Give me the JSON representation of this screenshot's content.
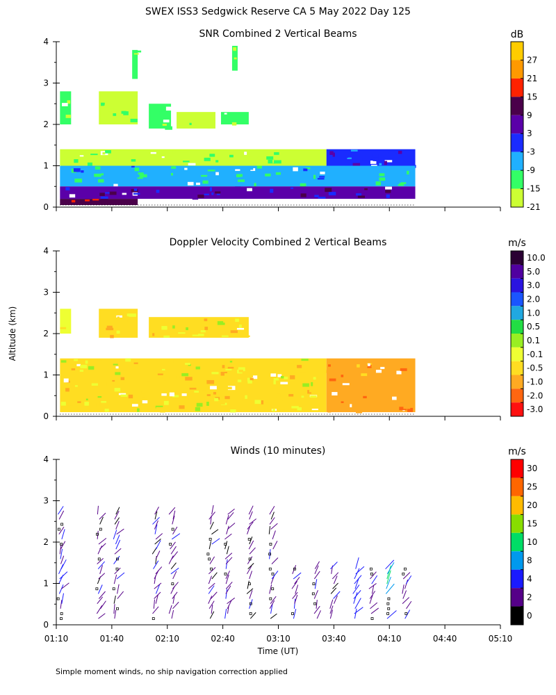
{
  "figure": {
    "title": "SWEX ISS3 Sedgwick Reserve CA   5 May 2022 Day 125",
    "y_label": "Altitude (km)",
    "x_label": "Time (UT)",
    "footnote": "Simple moment winds, no ship navigation correction applied"
  },
  "chart_data": [
    {
      "type": "heatmap",
      "title": "SNR Combined 2 Vertical Beams",
      "x_ticks": [
        "01:10",
        "01:40",
        "02:10",
        "02:40",
        "03:10",
        "03:40",
        "04:10",
        "04:40",
        "05:10"
      ],
      "x_range_hours": [
        1.1667,
        5.1667
      ],
      "ylim": [
        0,
        4
      ],
      "y_ticks": [
        "0",
        "1",
        "2",
        "3",
        "4"
      ],
      "colorbar": {
        "unit": "dB",
        "labels": [
          "27",
          "21",
          "15",
          "9",
          "3",
          "-3",
          "-9",
          "-15",
          "-21"
        ],
        "colors": [
          "#ffcc00",
          "#ff9900",
          "#ff2200",
          "#4a004a",
          "#5a00a8",
          "#1a2bff",
          "#20b0ff",
          "#33ff66",
          "#ccff33"
        ]
      },
      "regions": [
        {
          "t": [
            1.2,
            1.3
          ],
          "z": [
            2.0,
            2.8
          ],
          "value": -15
        },
        {
          "t": [
            1.55,
            1.9
          ],
          "z": [
            2.0,
            2.8
          ],
          "value": -18
        },
        {
          "t": [
            1.85,
            1.9
          ],
          "z": [
            3.1,
            3.8
          ],
          "value": -15
        },
        {
          "t": [
            2.0,
            2.2
          ],
          "z": [
            1.9,
            2.5
          ],
          "value": -15
        },
        {
          "t": [
            2.25,
            2.6
          ],
          "z": [
            1.9,
            2.3
          ],
          "value": -18
        },
        {
          "t": [
            2.65,
            2.9
          ],
          "z": [
            2.0,
            2.3
          ],
          "value": -15
        },
        {
          "t": [
            2.75,
            2.8
          ],
          "z": [
            3.3,
            3.9
          ],
          "value": -15
        },
        {
          "t": [
            1.2,
            3.6
          ],
          "z": [
            1.0,
            1.4
          ],
          "value": -18
        },
        {
          "t": [
            3.6,
            4.4
          ],
          "z": [
            0.9,
            1.4
          ],
          "value": 0
        },
        {
          "t": [
            1.2,
            4.4
          ],
          "z": [
            0.5,
            1.0
          ],
          "value": -8
        },
        {
          "t": [
            1.2,
            4.4
          ],
          "z": [
            0.2,
            0.5
          ],
          "value": 5
        },
        {
          "t": [
            1.2,
            1.9
          ],
          "z": [
            0.05,
            0.2
          ],
          "value": 12
        }
      ]
    },
    {
      "type": "heatmap",
      "title": "Doppler Velocity Combined 2 Vertical Beams",
      "x_ticks": [
        "01:10",
        "01:40",
        "02:10",
        "02:40",
        "03:10",
        "03:40",
        "04:10",
        "04:40",
        "05:10"
      ],
      "ylim": [
        0,
        4
      ],
      "y_ticks": [
        "0",
        "1",
        "2",
        "3",
        "4"
      ],
      "colorbar": {
        "unit": "m/s",
        "labels": [
          "10.0",
          "5.0",
          "3.0",
          "2.0",
          "1.0",
          "0.5",
          "0.1",
          "-0.1",
          "-0.5",
          "-1.0",
          "-2.0",
          "-3.0"
        ],
        "colors": [
          "#2a0033",
          "#5000a0",
          "#2a14e0",
          "#1a55ff",
          "#20a8e0",
          "#22dd44",
          "#99ee22",
          "#eeff33",
          "#ffdd22",
          "#ffaa22",
          "#ff6610",
          "#ff1010"
        ]
      },
      "regions": [
        {
          "t": [
            1.2,
            1.3
          ],
          "z": [
            2.0,
            2.6
          ],
          "value": 0.0
        },
        {
          "t": [
            1.55,
            1.9
          ],
          "z": [
            1.9,
            2.6
          ],
          "value": -0.4
        },
        {
          "t": [
            2.0,
            2.9
          ],
          "z": [
            1.9,
            2.4
          ],
          "value": -0.3
        },
        {
          "t": [
            1.2,
            3.6
          ],
          "z": [
            0.1,
            1.4
          ],
          "value": -0.2
        },
        {
          "t": [
            3.6,
            4.4
          ],
          "z": [
            0.1,
            1.4
          ],
          "value": -0.8
        }
      ]
    },
    {
      "type": "barbs",
      "title": "Winds (10 minutes)",
      "x_ticks": [
        "01:10",
        "01:40",
        "02:10",
        "02:40",
        "03:10",
        "03:40",
        "04:10",
        "04:40",
        "05:10"
      ],
      "ylim": [
        0,
        4
      ],
      "y_ticks": [
        "0",
        "1",
        "2",
        "3",
        "4"
      ],
      "colorbar": {
        "unit": "m/s",
        "labels": [
          "30",
          "25",
          "20",
          "15",
          "10",
          "8",
          "4",
          "2",
          "0"
        ],
        "colors": [
          "#ff0000",
          "#ff6600",
          "#ffbb00",
          "#88dd00",
          "#00dd66",
          "#0099ee",
          "#1a1aff",
          "#550088",
          "#000000"
        ]
      },
      "profile_times_hours": [
        1.2,
        1.55,
        1.7,
        2.05,
        2.2,
        2.55,
        2.7,
        2.9,
        3.1,
        3.3,
        3.5,
        3.65,
        3.85,
        4.0,
        4.15,
        4.3
      ],
      "typical_speed_ms": [
        4,
        3,
        3,
        3,
        3,
        3,
        3,
        3,
        3,
        3,
        3,
        3,
        6,
        4,
        9,
        4
      ]
    }
  ]
}
